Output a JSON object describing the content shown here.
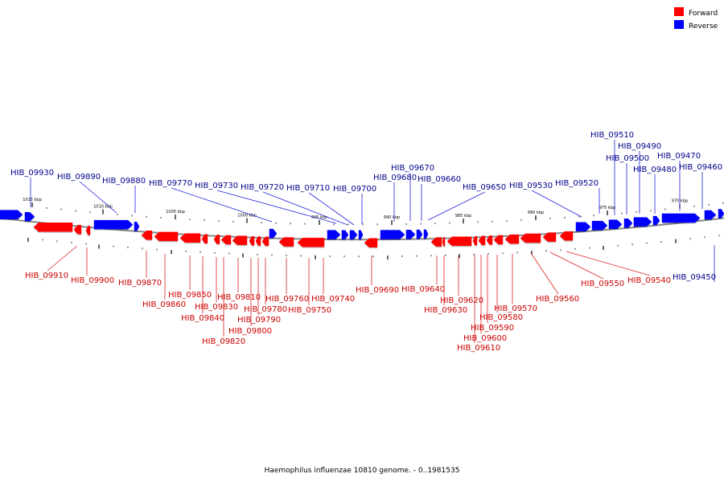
{
  "colors": {
    "forward": "#ff0000",
    "reverse": "#0000ff",
    "forward_label": "#cc0000",
    "reverse_label": "#00008b",
    "backbone": "#777777"
  },
  "legend": {
    "forward_label": "Forward",
    "reverse_label": "Reverse"
  },
  "caption": "Haemophilus influenzae 10810 genome. - 0..1981535",
  "scale_labels": [
    "1015 kbp",
    "1010 kbp",
    "1005 kbp",
    "1000 kbp",
    "995 kbp",
    "990 kbp",
    "985 kbp",
    "980 kbp",
    "975 kbp",
    "970 kbp"
  ],
  "reverse_genes": [
    "HIB_09930",
    "HIB_09890",
    "HIB_09880",
    "HIB_09770",
    "HIB_09730",
    "HIB_09720",
    "HIB_09710",
    "HIB_09700",
    "HIB_09680",
    "HIB_09670",
    "HIB_09660",
    "HIB_09650",
    "HIB_09530",
    "HIB_09520",
    "HIB_09510",
    "HIB_09500",
    "HIB_09490",
    "HIB_09480",
    "HIB_09470",
    "HIB_09460",
    "HIB_09450"
  ],
  "forward_genes": [
    "HIB_09910",
    "HIB_09900",
    "HIB_09870",
    "HIB_09860",
    "HIB_09850",
    "HIB_09840",
    "HIB_09830",
    "HIB_09820",
    "HIB_09810",
    "HIB_09800",
    "HIB_09790",
    "HIB_09780",
    "HIB_09760",
    "HIB_09750",
    "HIB_09740",
    "HIB_09690",
    "HIB_09640",
    "HIB_09630",
    "HIB_09620",
    "HIB_09610",
    "HIB_09600",
    "HIB_09590",
    "HIB_09580",
    "HIB_09570",
    "HIB_09560",
    "HIB_09550",
    "HIB_09540"
  ]
}
